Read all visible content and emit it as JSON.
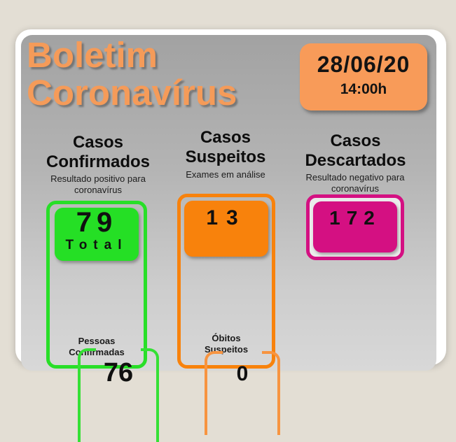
{
  "bulletin": {
    "title_line1": "Boletim",
    "title_line2": "Coronavírus",
    "date": "28/06/20",
    "time": "14:00h"
  },
  "columns": [
    {
      "name": "Casos Confirmados",
      "heading_line1": "Casos",
      "heading_line2": "Confirmados",
      "subtitle": "Resultado positivo para coronavírus",
      "main_value": "79",
      "main_label": "Total",
      "secondary_label_line1": "Pessoas",
      "secondary_label_line2": "Confirmadas",
      "secondary_value": "76",
      "accent_color": "#25df25"
    },
    {
      "name": "Casos Suspeitos",
      "heading_line1": "Casos",
      "heading_line2": "Suspeitos",
      "subtitle": "Exames em análise",
      "main_value": "13",
      "secondary_label_line1": "Óbitos",
      "secondary_label_line2": "Suspeitos",
      "secondary_value": "0",
      "accent_color": "#f8820c"
    },
    {
      "name": "Casos Descartados",
      "heading_line1": "Casos",
      "heading_line2": "Descartados",
      "subtitle": "Resultado negativo para coronavírus",
      "main_value": "172",
      "accent_color": "#d41082"
    }
  ],
  "colors": {
    "page_background": "#e3ded4",
    "card_background": "#ffffff",
    "panel_gray_top": "#a2a2a2",
    "panel_gray_bottom": "#d8d8d8",
    "title_orange": "#f59b59",
    "datetime_box_orange": "#f89b59",
    "confirmed_green": "#25df25",
    "suspect_orange": "#f8820c",
    "discarded_magenta": "#d41082",
    "text_black": "#131313"
  }
}
